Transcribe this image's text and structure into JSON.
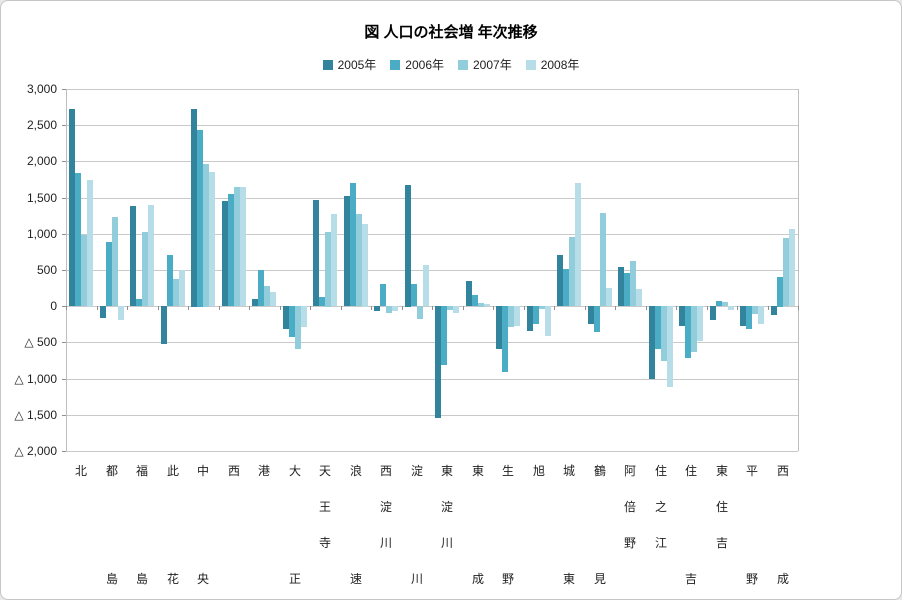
{
  "chart_data": {
    "type": "bar",
    "title": "図 人口の社会増 年次推移",
    "categories": [
      "北",
      "都島",
      "福島",
      "此花",
      "中央",
      "西",
      "港",
      "大正",
      "天王寺",
      "浪速",
      "西淀川",
      "淀川",
      "東淀川",
      "東成",
      "生野",
      "旭",
      "城東",
      "鶴見",
      "阿倍野",
      "住之江",
      "住吉",
      "東住吉",
      "平野",
      "西成"
    ],
    "series": [
      {
        "name": "2005年",
        "color": "#31849B",
        "values": [
          2720,
          -165,
          1380,
          -530,
          2730,
          1450,
          100,
          -315,
          1470,
          1520,
          -75,
          1680,
          -1545,
          350,
          -590,
          -340,
          705,
          -250,
          535,
          -1010,
          -270,
          -190,
          -270,
          -130
        ]
      },
      {
        "name": "2006年",
        "color": "#4BACC6",
        "values": [
          1840,
          890,
          100,
          710,
          2440,
          1550,
          500,
          -430,
          130,
          1695,
          300,
          305,
          -820,
          150,
          -915,
          -250,
          510,
          -360,
          460,
          -590,
          -720,
          65,
          -315,
          410
        ]
      },
      {
        "name": "2007年",
        "color": "#92CDDC",
        "values": [
          980,
          1230,
          1020,
          370,
          1970,
          1650,
          280,
          -590,
          1030,
          1270,
          -95,
          -180,
          -60,
          50,
          -295,
          -40,
          950,
          1285,
          625,
          -760,
          -640,
          60,
          -110,
          940
        ]
      },
      {
        "name": "2008年",
        "color": "#B7DEE8",
        "values": [
          1750,
          -195,
          1400,
          500,
          1850,
          1640,
          190,
          -295,
          1270,
          1140,
          -75,
          570,
          -95,
          30,
          -270,
          -410,
          1700,
          250,
          235,
          -1120,
          -480,
          -55,
          -245,
          1060
        ]
      }
    ],
    "ylim": [
      -2000,
      3000
    ],
    "ytick_step": 500,
    "ytick_labels": [
      "3,000",
      "2,500",
      "2,000",
      "1,500",
      "1,000",
      "500",
      "0",
      "△ 500",
      "△ 1,000",
      "△ 1,500",
      "△ 2,000"
    ],
    "negative_prefix": "△ ",
    "grid": true,
    "legend_position": "top",
    "gridline_color": "#c9c9c9",
    "text_color": "#1f1f1f"
  }
}
